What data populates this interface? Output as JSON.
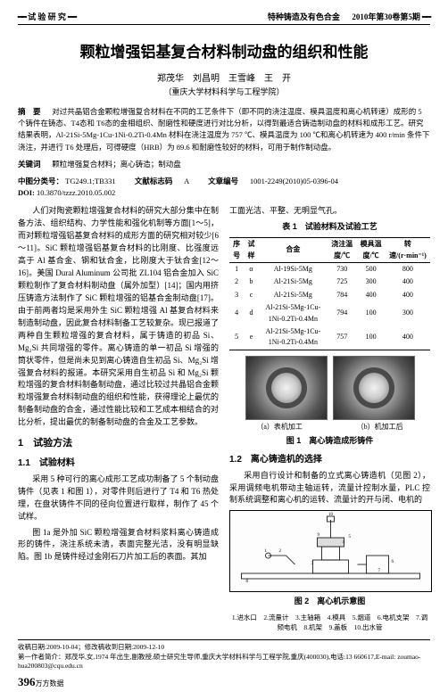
{
  "header": {
    "left_decor": "━━",
    "left_label": "试 验 研 究",
    "right_journal": "特种铸造及有色合金",
    "right_issue": "2010年第30卷第5期",
    "right_decor": "━━"
  },
  "title": "颗粒增强铝基复合材料制动盘的组织和性能",
  "authors": "郑茂华　刘昌明　王雪峰　王　开",
  "affiliation": "（重庆大学材料科学与工程学院）",
  "abstract": {
    "label": "摘　要",
    "text": "对过共晶铝合金颗粒增强复合材料在不同的工艺条件下（即不同的浇注温度、模具温度和离心机转速）成形的 5 个铸件在铸态、T4态和 T6态的金相组织、耐磨性和硬度进行对比分析，以得到最适合铸造制动盘的材料和成形工艺。研究结果表明，Al-21Si-5Mg-1Cu-1Ni-0.2Ti-0.4Mn 材料在浇注温度为 757 ℃、模具温度为 100 ℃和离心机转速为 400 r/min 条件下浇注，并进行 T6 处理后，可得硬度（HRB）为 89.6 和耐磨性较好的材料，可用于制作制动盘。"
  },
  "keywords": {
    "label": "关键词",
    "text": "颗粒增强复合材料；离心铸造；制动盘"
  },
  "clc": {
    "label_cn": "中图分类号：",
    "code": "TG249.1;TB331",
    "doc_label": "文献标志码",
    "doc_code": "A",
    "serial_label": "文章编号",
    "serial": "1001-2249(2010)05-0396-04"
  },
  "doi": {
    "label": "DOI:",
    "value": "10.3870/tzzz.2010.05.002"
  },
  "body": {
    "intro": "人们对陶瓷颗粒增强复合材料的研究大部分集中在制备方法、组织结构、力学性能和强化机制等方面[1～5]，而对颗粒增强铝基复合材料的成形方面的研究相对较少[6～11]。SiC 颗粒增强铝基复合材料的比刚度、比强度远高于 Al 基合金、钢和钛合金，比刚度大于钛合金[12～16]。美国 Dural Aluminum 公司批 ZL104 铝合金加入 SiC 颗粒制作了复合材料制动盘（属外加型）[14]；国内用挤压铸造方法制作了 SiC 颗粒增强的铝基合金制动盘[17]。由于前两者均是采用外生 SiC 颗粒增强 Al 基复合材料来制造制动盘，因此复合材料制备工艺较复杂。现已报道了两种自生颗粒增强的复合材料，属于铸造的初品 Si、Mg₂Si 共同增强的零件。离心铸造的单一初品 Si 增强的筒状零件，但是尚未见到离心铸造自生初品 Si、Mg₂Si 增强复合材料的报道。本研究采用自生初品 Si 和 Mg₂Si 颗粒增强的复合材料制备制动盘，通过比较过共晶铝合金颗粒增强复合材料制动盘的组织和性能，获得理论上最优的制备制动盘的合金，通过性能比较和工艺成本相结合的对比分析，提出最优的制备制动盘的合金及工艺参数。",
    "sec1": "1　试验方法",
    "sec11": "1.1　试验材料",
    "p11a": "采用 5 种可行的离心成形工艺成功制备了 5 个制动盘铸件（见表 1 和图 1），对零件则后进行了 T4 和 T6 热处理，在盘状铸件不同的径向位置进行取样，制作了 45 个试样。",
    "p11b": "图 1a 是外加 SiC 颗粒增强复合材料浆料离心铸造成形的铸件，浇注系统未清，表面完整光洁，没有明显缺陷。图 1b 是铸件经过金刚石刀片加工后的表面。其加",
    "rcol_lead": "工面光洁、平整、无明显气孔。",
    "table1cap": "表 1　试验材料及试验工艺",
    "sec12": "1.2　离心铸造机的选择",
    "p12": "采用自行设计和制备的立式离心铸造机（见图 2），采用调频电机带动主轴运转，流量计控制水量，PLC 控制系统调整和离心机的运转、流量计的开与闭、电机的",
    "fig1_a": "（a）表机加工",
    "fig1_b": "（b）机加工后",
    "fig1cap": "图 1　离心铸造成形铸件",
    "fig2cap": "图 2　离心机示意图",
    "fig2legend": "1.进水口　2.流量计　3.主轴箱　4.模具　5.烟道　6.电机支架　7.调频电机　8.机架　9.盖板　10.出水管"
  },
  "table1": {
    "columns": [
      "序号",
      "试样",
      "合金",
      "浇注温度/℃",
      "模具温度/℃",
      "转速/(r·min⁻¹)"
    ],
    "rows": [
      [
        "1",
        "α",
        "Al-19Si-5Mg",
        "730",
        "500",
        "800"
      ],
      [
        "2",
        "b",
        "Al-21Si-5Mg",
        "725",
        "300",
        "400"
      ],
      [
        "3",
        "c",
        "Al-21Si-5Mg",
        "784",
        "400",
        "400"
      ],
      [
        "4",
        "d",
        "Al-21Si-5Mg-1Cu-1Ni-0.2Ti-0.4Mn",
        "794",
        "100",
        "300"
      ],
      [
        "5",
        "e",
        "Al-21Si-5Mg-1Cu-1Ni-0.2Ti-0.4Mn",
        "757",
        "100",
        "400"
      ]
    ]
  },
  "footer": {
    "recv": "收稿日期:2009-10-04；修改稿收到日期:2009-12-10",
    "auth": "第一作者简介：郑茂华,女,1974 年出生,副教授,硕士研究生导师,重庆大学材料科学与工程学院,重庆(400030),电话:13 660617,E-mail: zoumao-hua200803@cqu.edu.cn",
    "page": "396",
    "pub": "万方数据"
  }
}
